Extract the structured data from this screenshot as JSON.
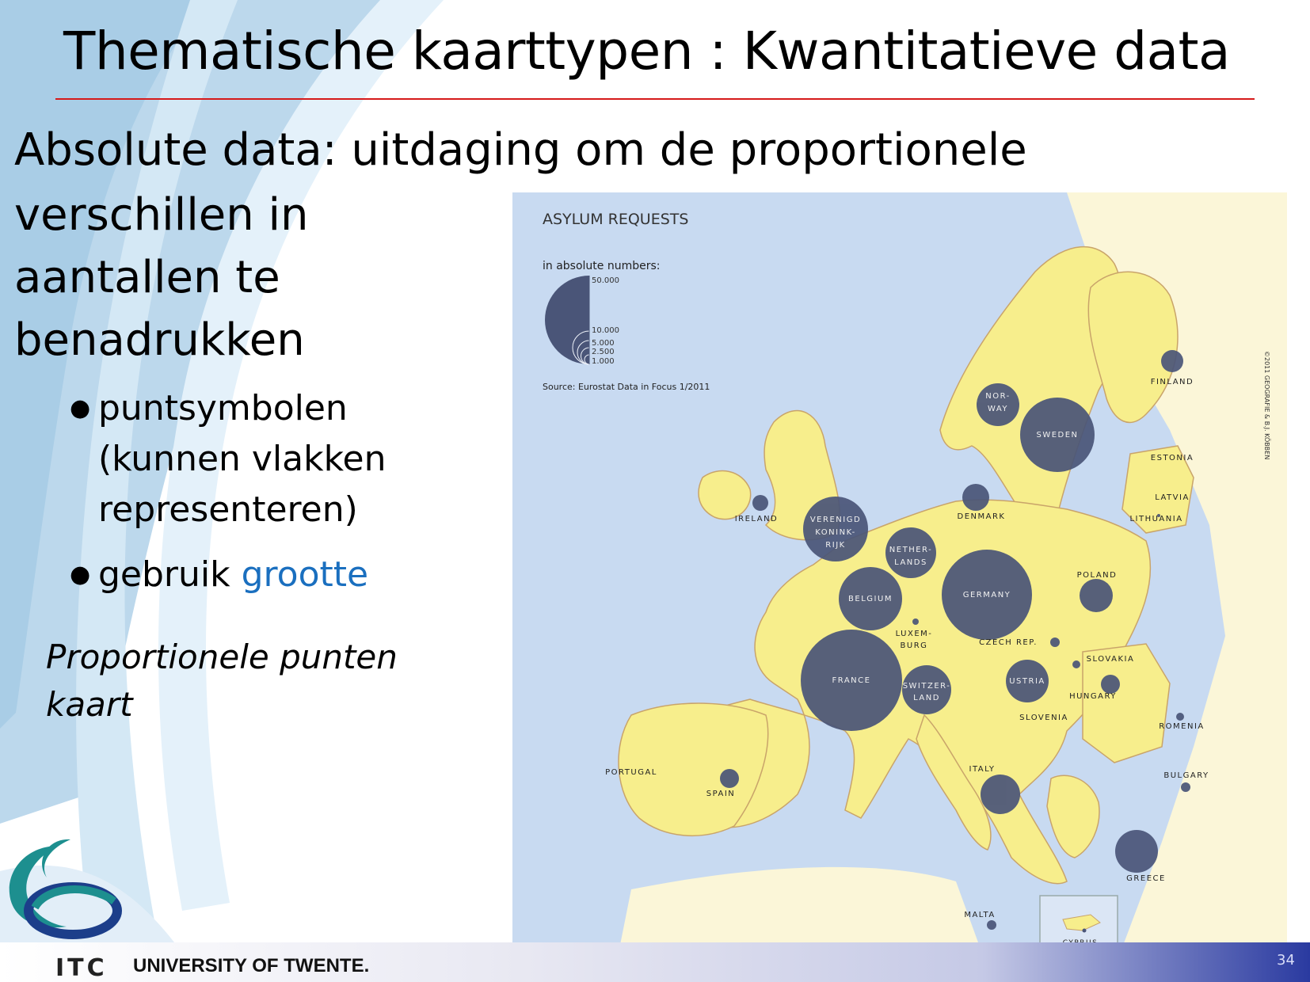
{
  "slide": {
    "title": "Thematische kaarttypen : Kwantitatieve data",
    "heading_line1": "Absolute data: uitdaging om de proportionele",
    "heading_lines": [
      "verschillen in",
      "aantallen te",
      "benadrukken"
    ],
    "bullets": [
      {
        "lines": [
          "puntsymbolen",
          "(kunnen vlakken",
          "representeren)"
        ]
      },
      {
        "prefix": "gebruik ",
        "highlight": "grootte"
      }
    ],
    "caption_lines": [
      "Proportionele punten",
      "kaart"
    ],
    "accent_color": "#1a6fbf",
    "rule_color": "#d61a1a"
  },
  "map": {
    "title": "ASYLUM REQUESTS",
    "legend_title": "in absolute numbers:",
    "legend_values": [
      "50.000",
      "10.000",
      "5.000",
      "2.500",
      "1.000"
    ],
    "source": "Source: Eurostat Data in Focus 1/2011",
    "copyright": "©2011 GEOGRAFIE & B.J. KÖBBEN",
    "symbol_color": "#4a5578",
    "land_color": "#f7ee8c",
    "sea_color": "#c8daf1",
    "countries": [
      {
        "label": "FINLAND"
      },
      {
        "label": "NOR-\nWAY"
      },
      {
        "label": "SWEDEN"
      },
      {
        "label": "ESTONIA"
      },
      {
        "label": "LATVIA"
      },
      {
        "label": "LITHUANIA"
      },
      {
        "label": "DENMARK"
      },
      {
        "label": "IRELAND"
      },
      {
        "label": "VERENIGD\nKONINK-\nRIJK"
      },
      {
        "label": "NETHER-\nLANDS"
      },
      {
        "label": "BELGIUM"
      },
      {
        "label": "GERMANY"
      },
      {
        "label": "POLAND"
      },
      {
        "label": "LUXEM-\nBURG"
      },
      {
        "label": "CZECH REP."
      },
      {
        "label": "SLOVAKIA"
      },
      {
        "label": "FRANCE"
      },
      {
        "label": "SWITZER-\nLAND"
      },
      {
        "label": "USTRIA"
      },
      {
        "label": "HUNGARY"
      },
      {
        "label": "SLOVENIA"
      },
      {
        "label": "ROMENIA"
      },
      {
        "label": "PORTUGAL"
      },
      {
        "label": "SPAIN"
      },
      {
        "label": "ITALY"
      },
      {
        "label": "BULGARY"
      },
      {
        "label": "GREECE"
      },
      {
        "label": "MALTA"
      },
      {
        "label": "CYPRUS"
      }
    ]
  },
  "footer": {
    "wordmark": "ITC",
    "university": "UNIVERSITY OF TWENTE.",
    "page_number": "34"
  }
}
